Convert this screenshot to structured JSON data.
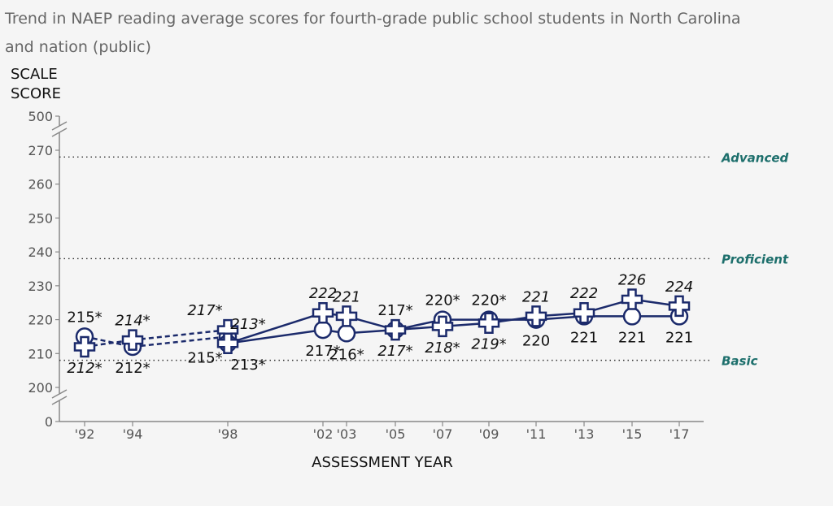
{
  "chart_data": {
    "type": "line",
    "title_line1": "Trend in NAEP reading average scores for fourth-grade public school students in North Carolina",
    "title_line2": "and nation (public)",
    "ylabel_line1": "SCALE",
    "ylabel_line2": "SCORE",
    "xlabel": "ASSESSMENT YEAR",
    "yticks": [
      "0",
      "200",
      "210",
      "220",
      "230",
      "240",
      "250",
      "260",
      "270",
      "500"
    ],
    "ylim": [
      200,
      270
    ],
    "axis_breaks": true,
    "grid": false,
    "x": [
      "'92",
      "'94",
      "'98",
      "'02",
      "'03",
      "'05",
      "'07",
      "'09",
      "'11",
      "'13",
      "'15",
      "'17"
    ],
    "achievement_levels": [
      {
        "label": "Advanced",
        "value": 268
      },
      {
        "label": "Proficient",
        "value": 238
      },
      {
        "label": "Basic",
        "value": 208
      }
    ],
    "series": [
      {
        "marker": "circle",
        "label_style": "upright",
        "color": "#1b2a6b",
        "points": [
          {
            "x": "'92",
            "y": 215,
            "label": "215*",
            "dashed": true
          },
          {
            "x": "'94",
            "y": 212,
            "label": "212*",
            "dashed": true
          },
          {
            "x": "'98",
            "y": 215,
            "label": "215*",
            "dashed": true
          },
          {
            "x": "'98",
            "y": 213,
            "label": "213*",
            "dashed": false
          },
          {
            "x": "'02",
            "y": 217,
            "label": "217*",
            "dashed": false
          },
          {
            "x": "'03",
            "y": 216,
            "label": "216*",
            "dashed": false
          },
          {
            "x": "'05",
            "y": 217,
            "label": "217*",
            "dashed": false
          },
          {
            "x": "'07",
            "y": 220,
            "label": "220*",
            "dashed": false
          },
          {
            "x": "'09",
            "y": 220,
            "label": "220*",
            "dashed": false
          },
          {
            "x": "'11",
            "y": 220,
            "label": "220",
            "dashed": false
          },
          {
            "x": "'13",
            "y": 221,
            "label": "221",
            "dashed": false
          },
          {
            "x": "'15",
            "y": 221,
            "label": "221",
            "dashed": false
          },
          {
            "x": "'17",
            "y": 221,
            "label": "221",
            "dashed": false
          }
        ]
      },
      {
        "marker": "plus",
        "label_style": "italic",
        "color": "#1b2a6b",
        "points": [
          {
            "x": "'92",
            "y": 212,
            "label": "212*",
            "dashed": true
          },
          {
            "x": "'94",
            "y": 214,
            "label": "214*",
            "dashed": true
          },
          {
            "x": "'98",
            "y": 217,
            "label": "217*",
            "dashed": true
          },
          {
            "x": "'98",
            "y": 213,
            "label": "213*",
            "dashed": false
          },
          {
            "x": "'02",
            "y": 222,
            "label": "222",
            "dashed": false
          },
          {
            "x": "'03",
            "y": 221,
            "label": "221",
            "dashed": false
          },
          {
            "x": "'05",
            "y": 217,
            "label": "217*",
            "dashed": false
          },
          {
            "x": "'07",
            "y": 218,
            "label": "218*",
            "dashed": false
          },
          {
            "x": "'09",
            "y": 219,
            "label": "219*",
            "dashed": false
          },
          {
            "x": "'11",
            "y": 221,
            "label": "221",
            "dashed": false
          },
          {
            "x": "'13",
            "y": 222,
            "label": "222",
            "dashed": false
          },
          {
            "x": "'15",
            "y": 226,
            "label": "226",
            "dashed": false
          },
          {
            "x": "'17",
            "y": 224,
            "label": "224",
            "dashed": false
          }
        ]
      }
    ]
  }
}
